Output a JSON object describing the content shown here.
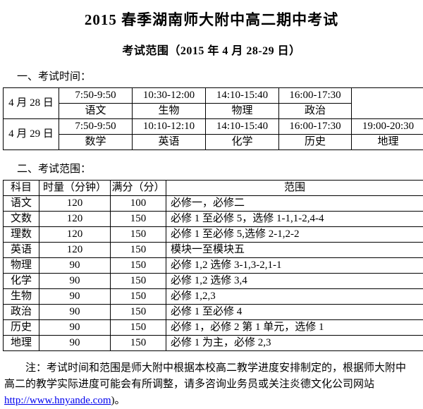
{
  "page": {
    "title": "2015 春季湖南师大附中高二期中考试",
    "subtitle": "考试范围（2015 年 4 月 28-29 日）",
    "section1_heading": "一、考试时间：",
    "section2_heading": "二、考试范围："
  },
  "schedule_table": {
    "days": [
      {
        "date": "4 月 28 日",
        "slots": [
          {
            "time": "7:50-9:50",
            "subject": "语文"
          },
          {
            "time": "10:30-12:00",
            "subject": "生物"
          },
          {
            "time": "14:10-15:40",
            "subject": "物理"
          },
          {
            "time": "16:00-17:30",
            "subject": "政治"
          },
          {
            "time": "",
            "subject": ""
          }
        ]
      },
      {
        "date": "4 月 29 日",
        "slots": [
          {
            "time": "7:50-9:50",
            "subject": "数学"
          },
          {
            "time": "10:10-12:10",
            "subject": "英语"
          },
          {
            "time": "14:10-15:40",
            "subject": "化学"
          },
          {
            "time": "16:00-17:30",
            "subject": "历史"
          },
          {
            "time": "19:00-20:30",
            "subject": "地理"
          }
        ]
      }
    ]
  },
  "scope_table": {
    "headers": [
      "科目",
      "时量（分钟）",
      "满分（分）",
      "范围"
    ],
    "rows": [
      {
        "subject": "语文",
        "duration": "120",
        "score": "100",
        "range": "必修一，必修二"
      },
      {
        "subject": "文数",
        "duration": "120",
        "score": "150",
        "range": "必修 1 至必修 5，选修 1-1,1-2,4-4"
      },
      {
        "subject": "理数",
        "duration": "120",
        "score": "150",
        "range": "必修 1 至必修 5,选修 2-1,2-2"
      },
      {
        "subject": "英语",
        "duration": "120",
        "score": "150",
        "range": "模块一至模块五"
      },
      {
        "subject": "物理",
        "duration": "90",
        "score": "150",
        "range": "必修 1,2 选修 3-1,3-2,1-1"
      },
      {
        "subject": "化学",
        "duration": "90",
        "score": "150",
        "range": "必修 1,2 选修 3,4"
      },
      {
        "subject": "生物",
        "duration": "90",
        "score": "150",
        "range": "必修 1,2,3"
      },
      {
        "subject": "政治",
        "duration": "90",
        "score": "150",
        "range": "必修 1 至必修 4"
      },
      {
        "subject": "历史",
        "duration": "90",
        "score": "150",
        "range": "必修 1，必修 2 第 1 单元，选修 1"
      },
      {
        "subject": "地理",
        "duration": "90",
        "score": "150",
        "range": "必修 1 为主，必修 2,3"
      }
    ]
  },
  "note": {
    "line1": "注：考试时间和范围是师大附中根据本校高二教学进度安排制定的，根据师大附中",
    "line2": "高二的教学实际进度可能会有所调整，请多咨询业务员或关注炎德文化公司网站",
    "link_text": "http://www.hnyande.com",
    "link_suffix": ")。",
    "link_color": "#0000ee"
  }
}
